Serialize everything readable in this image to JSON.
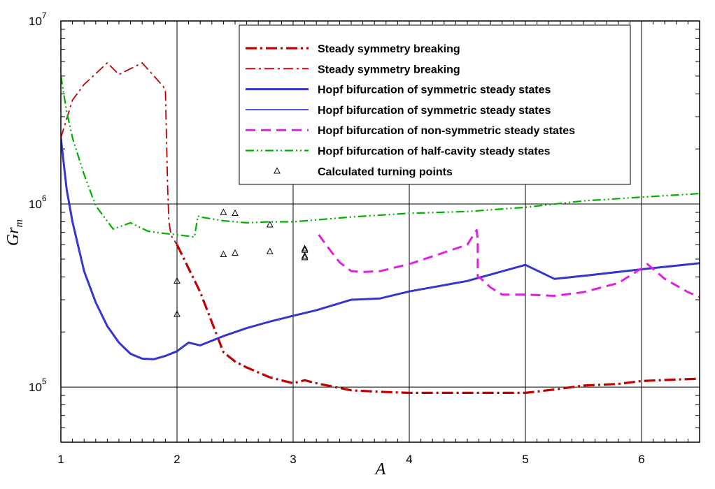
{
  "chart_data": {
    "type": "line",
    "title": "",
    "xlabel": "A",
    "ylabel": "Gr_m",
    "xlim": [
      1,
      6.5
    ],
    "ylim": [
      50000,
      10000000
    ],
    "yscale": "log",
    "grid": true,
    "x_ticks": [
      1,
      2,
      3,
      4,
      5,
      6
    ],
    "x_tick_labels": [
      "1",
      "2",
      "3",
      "4",
      "5",
      "6"
    ],
    "y_ticks": [
      100000,
      1000000,
      10000000
    ],
    "y_tick_labels": [
      {
        "base": "10",
        "exp": "5"
      },
      {
        "base": "10",
        "exp": "6"
      },
      {
        "base": "10",
        "exp": "7"
      }
    ],
    "legend_position": "top-right",
    "series": [
      {
        "name": "Steady symmetry breaking",
        "color": "#c00000",
        "style": "thick-dashdot",
        "x": [
          2.0,
          2.2,
          2.4,
          2.5,
          2.6,
          2.8,
          3.0,
          3.1,
          3.2,
          3.5,
          3.8,
          4.0,
          4.5,
          5.0,
          5.25,
          5.5,
          5.8,
          6.0,
          6.3,
          6.5
        ],
        "y": [
          600000,
          330000,
          155000,
          138000,
          128000,
          113000,
          105000,
          109000,
          105000,
          96000,
          94000,
          93000,
          93000,
          93000,
          97000,
          102000,
          104000,
          108000,
          110000,
          111000
        ]
      },
      {
        "name": "Steady symmetry breaking",
        "color": "#c00000",
        "style": "thin-dashdot",
        "x": [
          1.0,
          1.1,
          1.2,
          1.4,
          1.5,
          1.7,
          1.88,
          1.9,
          1.92,
          1.93,
          1.95,
          2.0
        ],
        "y": [
          2300000,
          3700000,
          4500000,
          5900000,
          5100000,
          5900000,
          4400000,
          4200000,
          1200000,
          800000,
          670000,
          600000
        ]
      },
      {
        "name": "Hopf bifurcation of symmetric steady states",
        "color": "#3535d0",
        "style": "thick-solid",
        "x": [
          1.0,
          1.05,
          1.1,
          1.2,
          1.3,
          1.4,
          1.5,
          1.6,
          1.7,
          1.8,
          1.9,
          2.0,
          2.1,
          2.2,
          2.4,
          2.6,
          2.8,
          3.0,
          3.2,
          3.5,
          3.75,
          4.0,
          4.5,
          5.0,
          5.25,
          5.5,
          6.0,
          6.5
        ],
        "y": [
          2300000,
          1200000,
          800000,
          430000,
          290000,
          215000,
          175000,
          152000,
          143000,
          142000,
          148000,
          157000,
          175000,
          169000,
          190000,
          210000,
          228000,
          245000,
          263000,
          300000,
          305000,
          333000,
          380000,
          465000,
          390000,
          405000,
          440000,
          475000
        ]
      },
      {
        "name": "Hopf bifurcation of symmetric steady states",
        "color": "#3535d0",
        "style": "thin-solid",
        "x": [],
        "y": []
      },
      {
        "name": "Hopf bifurcation of non-symmetric steady states",
        "color": "#e020e0",
        "style": "dashed",
        "x": [
          3.22,
          3.3,
          3.4,
          3.5,
          3.6,
          3.75,
          4.0,
          4.25,
          4.5,
          4.58,
          4.59,
          4.59,
          4.62,
          4.7,
          4.8,
          5.0,
          5.25,
          5.5,
          5.8,
          6.0,
          6.05,
          6.2,
          6.4,
          6.5
        ],
        "y": [
          680000,
          580000,
          480000,
          430000,
          425000,
          430000,
          470000,
          530000,
          600000,
          720000,
          640000,
          400000,
          390000,
          350000,
          320000,
          320000,
          315000,
          330000,
          370000,
          445000,
          470000,
          390000,
          330000,
          310000
        ]
      },
      {
        "name": "Hopf bifurcation of half-cavity steady states",
        "color": "#00b000",
        "style": "dashdotdot",
        "x": [
          1.0,
          1.05,
          1.1,
          1.2,
          1.3,
          1.45,
          1.6,
          1.75,
          1.9,
          2.0,
          2.15,
          2.18,
          2.2,
          2.4,
          2.6,
          2.8,
          3.0,
          3.5,
          4.0,
          4.5,
          5.0,
          5.5,
          6.0,
          6.5
        ],
        "y": [
          5000000,
          3200000,
          2300000,
          1450000,
          980000,
          730000,
          790000,
          710000,
          690000,
          680000,
          660000,
          860000,
          850000,
          810000,
          790000,
          800000,
          800000,
          850000,
          890000,
          910000,
          960000,
          1040000,
          1090000,
          1140000
        ]
      },
      {
        "name": "Calculated turning points",
        "color": "#000000",
        "style": "triangle-markers",
        "x": [
          2.0,
          2.0,
          2.4,
          2.5,
          2.4,
          2.5,
          2.8,
          2.8,
          3.1,
          3.1,
          3.1,
          3.1
        ],
        "y": [
          380000,
          250000,
          900000,
          890000,
          530000,
          540000,
          770000,
          550000,
          570000,
          560000,
          520000,
          510000
        ]
      }
    ]
  }
}
